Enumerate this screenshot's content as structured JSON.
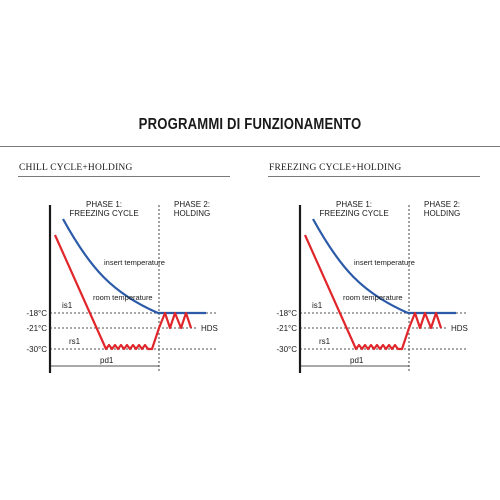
{
  "page": {
    "title": "PROGRAMMI DI FUNZIONAMENTO"
  },
  "colors": {
    "insert_curve": "#2a5aa8",
    "room_curve": "#e0262b",
    "axis": "#1a1a1a",
    "guide": "#1a1a1a"
  },
  "panels": [
    {
      "title": "CHILL CYCLE+HOLDING",
      "phase1_line1": "PHASE 1:",
      "phase1_line2": "FREEZING CYCLE",
      "phase2_line1": "PHASE 2:",
      "phase2_line2": "HOLDING",
      "insert_label": "insert temperature",
      "room_label": "room temperature",
      "is1_label": "is1",
      "rs1_label": "rs1",
      "pd1_label": "pd1",
      "hds_label": "HDS",
      "temp_minus18": "-18°C",
      "temp_minus21": "-21°C",
      "temp_minus30": "-30°C"
    },
    {
      "title": "FREEZING CYCLE+HOLDING",
      "phase1_line1": "PHASE 1:",
      "phase1_line2": "FREEZING CYCLE",
      "phase2_line1": "PHASE 2:",
      "phase2_line2": "HOLDING",
      "insert_label": "insert temperature",
      "room_label": "room temperature",
      "is1_label": "is1",
      "rs1_label": "rs1",
      "pd1_label": "pd1",
      "hds_label": "HDS",
      "temp_minus18": "-18°C",
      "temp_minus21": "-21°C",
      "temp_minus30": "-30°C"
    }
  ]
}
